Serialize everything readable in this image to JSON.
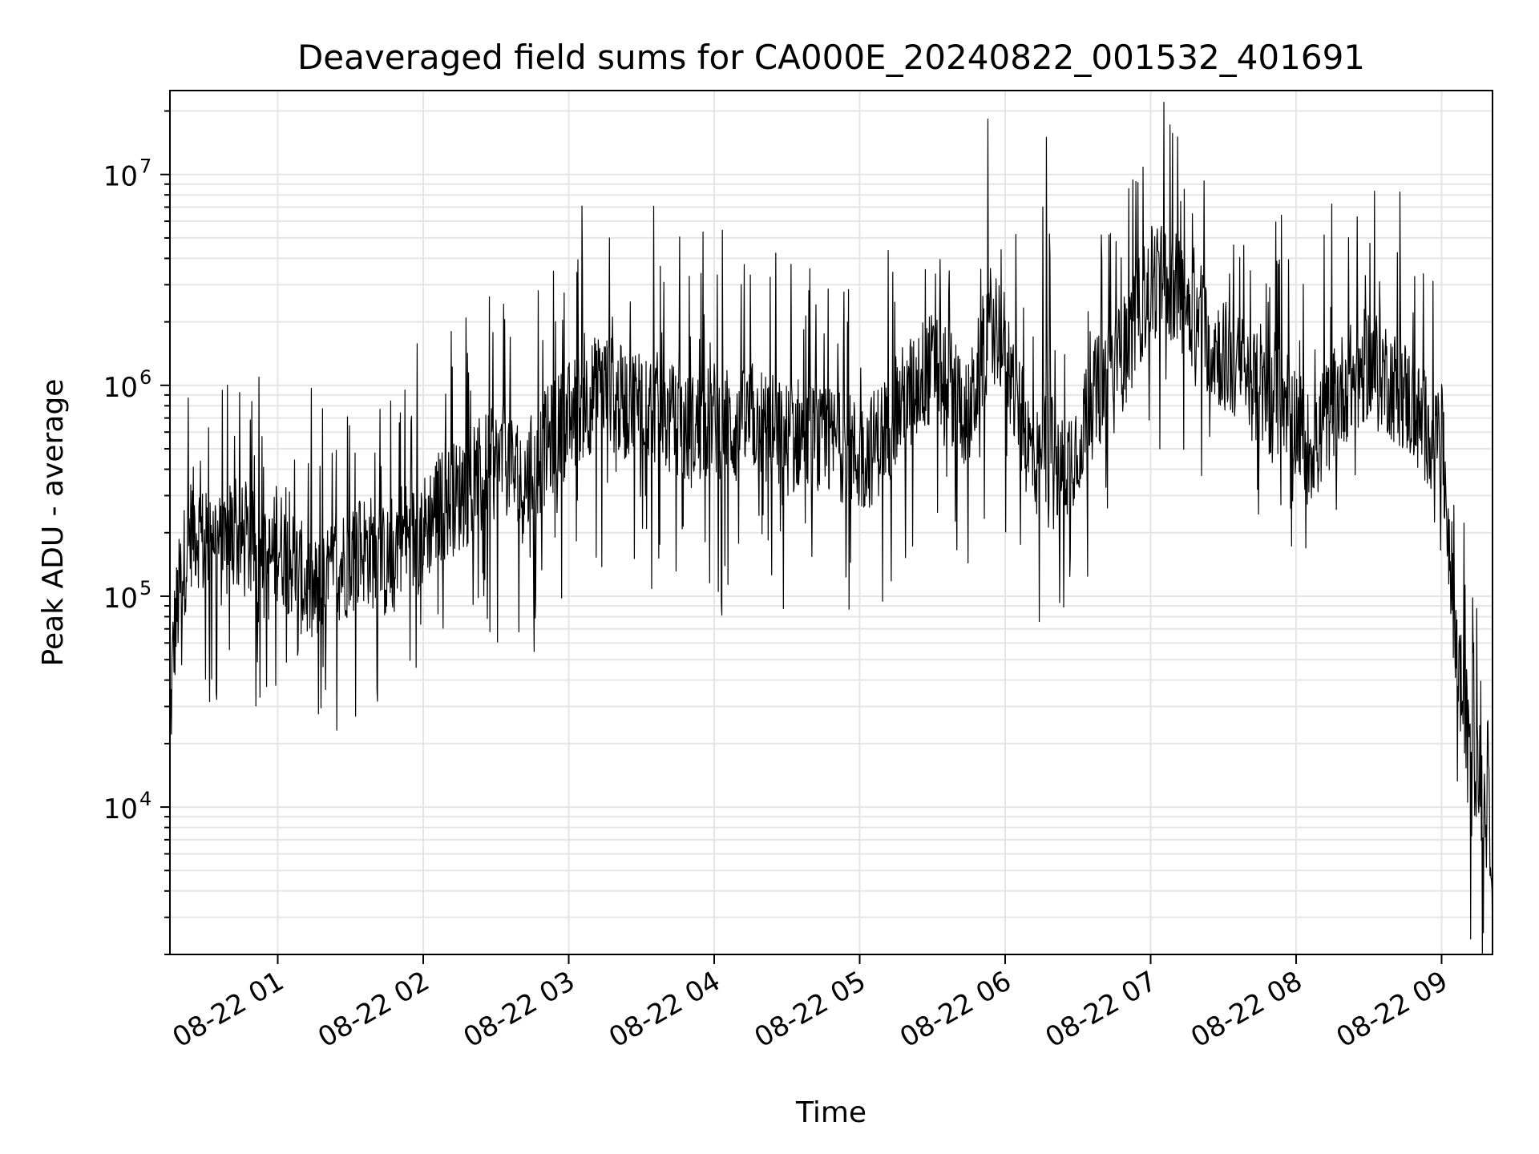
{
  "chart_data": {
    "type": "line",
    "title": "Deaveraged field sums for CA000E_20240822_001532_401691",
    "xlabel": "Time",
    "ylabel": "Peak ADU - average",
    "yscale": "log",
    "ylim": [
      2000,
      25000000
    ],
    "xlim": [
      "2024-08-22 00:15:32",
      "2024-08-22 09:21:00"
    ],
    "grid": true,
    "line_color": "#000000",
    "grid_color": "#e5e5e5",
    "x_ticks": [
      {
        "label": "08-22 01",
        "time": "2024-08-22 01:00"
      },
      {
        "label": "08-22 02",
        "time": "2024-08-22 02:00"
      },
      {
        "label": "08-22 03",
        "time": "2024-08-22 03:00"
      },
      {
        "label": "08-22 04",
        "time": "2024-08-22 04:00"
      },
      {
        "label": "08-22 05",
        "time": "2024-08-22 05:00"
      },
      {
        "label": "08-22 06",
        "time": "2024-08-22 06:00"
      },
      {
        "label": "08-22 07",
        "time": "2024-08-22 07:00"
      },
      {
        "label": "08-22 08",
        "time": "2024-08-22 08:00"
      },
      {
        "label": "08-22 09",
        "time": "2024-08-22 09:00"
      }
    ],
    "y_ticks": [
      {
        "base": "10",
        "exp": "4",
        "value": 10000
      },
      {
        "base": "10",
        "exp": "5",
        "value": 100000
      },
      {
        "base": "10",
        "exp": "6",
        "value": 1000000
      },
      {
        "base": "10",
        "exp": "7",
        "value": 10000000
      }
    ],
    "series": [
      {
        "x": [
          "00:15",
          "00:16",
          "00:17",
          "00:20",
          "00:23",
          "00:25",
          "00:28",
          "00:30",
          "00:33",
          "00:35",
          "00:38",
          "00:40",
          "00:45",
          "00:50",
          "00:55",
          "01:00",
          "01:05",
          "01:10",
          "01:15",
          "01:20",
          "01:25",
          "01:30",
          "01:35",
          "01:40",
          "01:45",
          "01:50",
          "01:55",
          "02:00",
          "02:05",
          "02:10",
          "02:15",
          "02:20",
          "02:25",
          "02:30",
          "02:35",
          "02:40",
          "02:45",
          "02:50",
          "02:55",
          "03:00",
          "03:05",
          "03:10",
          "03:15",
          "03:20",
          "03:25",
          "03:30",
          "03:35",
          "03:40",
          "03:45",
          "03:50",
          "03:55",
          "04:00",
          "04:05",
          "04:10",
          "04:15",
          "04:20",
          "04:25",
          "04:30",
          "04:35",
          "04:40",
          "04:45",
          "04:50",
          "04:55",
          "05:00",
          "05:05",
          "05:10",
          "05:15",
          "05:20",
          "05:25",
          "05:30",
          "05:35",
          "05:40",
          "05:45",
          "05:50",
          "05:55",
          "06:00",
          "06:05",
          "06:10",
          "06:15",
          "06:17",
          "06:20",
          "06:25",
          "06:30",
          "06:35",
          "06:40",
          "06:45",
          "06:50",
          "06:55",
          "07:00",
          "07:05",
          "07:10",
          "07:15",
          "07:20",
          "07:25",
          "07:30",
          "07:35",
          "07:40",
          "07:45",
          "07:50",
          "07:55",
          "08:00",
          "08:05",
          "08:10",
          "08:15",
          "08:20",
          "08:25",
          "08:30",
          "08:35",
          "08:40",
          "08:45",
          "08:50",
          "08:55",
          "09:00",
          "09:03",
          "09:06",
          "09:09",
          "09:12",
          "09:15",
          "09:18",
          "09:21"
        ],
        "y": [
          12000,
          30000,
          60000,
          120000,
          180000,
          220000,
          200000,
          160000,
          240000,
          180000,
          150000,
          200000,
          180000,
          170000,
          130000,
          180000,
          150000,
          120000,
          100000,
          110000,
          140000,
          150000,
          170000,
          160000,
          140000,
          200000,
          180000,
          200000,
          260000,
          280000,
          300000,
          330000,
          400000,
          420000,
          450000,
          320000,
          400000,
          500000,
          600000,
          700000,
          800000,
          900000,
          1000000,
          850000,
          800000,
          900000,
          800000,
          700000,
          650000,
          600000,
          650000,
          700000,
          650000,
          600000,
          700000,
          650000,
          600000,
          550000,
          600000,
          550000,
          500000,
          550000,
          500000,
          450000,
          500000,
          600000,
          750000,
          900000,
          1100000,
          1200000,
          1100000,
          900000,
          700000,
          1300000,
          2200000,
          1500000,
          800000,
          500000,
          400000,
          15000000,
          350000,
          420000,
          550000,
          800000,
          1000000,
          1200000,
          1500000,
          2200000,
          3000000,
          3300000,
          2900000,
          2500000,
          2000000,
          1600000,
          1400000,
          1200000,
          1100000,
          900000,
          800000,
          900000,
          700000,
          500000,
          600000,
          800000,
          1000000,
          1100000,
          1300000,
          1200000,
          1000000,
          900000,
          700000,
          600000,
          550000,
          200000,
          60000,
          30000,
          20000,
          15000,
          10000,
          7000
        ]
      }
    ]
  }
}
